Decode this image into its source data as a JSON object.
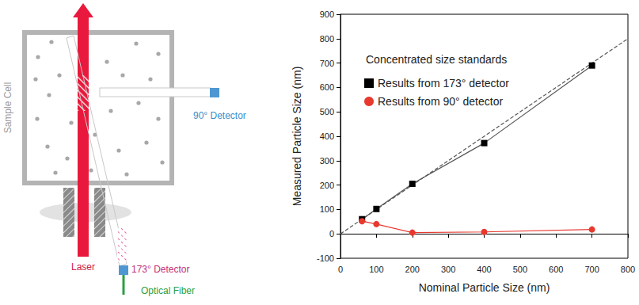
{
  "chart_data": {
    "type": "line",
    "legend_title": "Concentrated size standards",
    "x_label": "Nominal Particle Size (nm)",
    "y_label": "Measured Particle Size (nm)",
    "xlim": [
      0,
      800
    ],
    "xticks": [
      0,
      100,
      200,
      300,
      400,
      500,
      600,
      700,
      800
    ],
    "ylim": [
      -100,
      900
    ],
    "yticks": [
      -100,
      0,
      100,
      200,
      300,
      400,
      500,
      600,
      700,
      800,
      900
    ],
    "grid": false,
    "legend": "upper left",
    "series": [
      {
        "name": "Results from 173° detector",
        "color": "#000000",
        "marker": "square",
        "line_style": "solid",
        "x": [
          60,
          100,
          200,
          400,
          700
        ],
        "values": [
          60,
          102,
          205,
          372,
          690
        ]
      },
      {
        "name": "Results from 90° detector",
        "color": "#e8392f",
        "marker": "circle",
        "line_style": "solid",
        "x": [
          60,
          100,
          200,
          400,
          700
        ],
        "values": [
          52,
          40,
          5,
          8,
          18
        ]
      },
      {
        "color": "#555555",
        "line_style": "dashed",
        "x": [
          0,
          800
        ],
        "values": [
          0,
          800
        ]
      }
    ]
  },
  "diagram": {
    "sample_cell": "Sample Cell",
    "detector_90": "90° Detector",
    "detector_173": "173° Detector",
    "laser": "Laser",
    "fiber": "Optical Fiber"
  }
}
